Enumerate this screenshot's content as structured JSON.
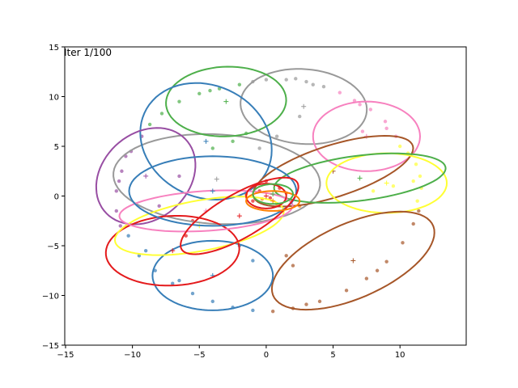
{
  "chart_data": {
    "type": "scatter",
    "annotation": "Iter 1/100",
    "xlim": [
      -15.06,
      14.95
    ],
    "ylim": [
      -15,
      15
    ],
    "xticks": [
      {
        "value": -15,
        "label": "−15"
      },
      {
        "value": -10,
        "label": "−10"
      },
      {
        "value": -5,
        "label": "−5"
      },
      0,
      5,
      10
    ],
    "yticks": [
      {
        "value": -15,
        "label": "−15"
      },
      {
        "value": -10,
        "label": "−10"
      },
      {
        "value": -5,
        "label": "−5"
      },
      0,
      5,
      10,
      15
    ],
    "groups": [
      {
        "color": "#377eb8",
        "x": [
          -10.3,
          -9.5,
          -8.3,
          -7,
          -5.5,
          -4,
          -2.5,
          -1,
          -6.5,
          -9,
          -2,
          -1
        ],
        "y": [
          -4,
          -6,
          -7.5,
          -8.8,
          -9.8,
          -10.6,
          -11.2,
          -11.5,
          -8.5,
          -5.5,
          -5,
          -6.5
        ]
      },
      {
        "color": "#a65628",
        "x": [
          0.5,
          2,
          4,
          6,
          7.5,
          9,
          10.2,
          11,
          11.4,
          3,
          8.3,
          2,
          1.5
        ],
        "y": [
          -11.6,
          -11.3,
          -10.6,
          -9.5,
          -8.3,
          -6.6,
          -4.7,
          -2.8,
          -1.5,
          -10.9,
          -7.5,
          -7,
          -6
        ]
      },
      {
        "color": "#ffff33",
        "x": [
          11.3,
          11.6,
          11.5,
          11.2,
          10.6,
          10,
          11,
          9.5,
          8
        ],
        "y": [
          -0.5,
          0.8,
          2,
          3.2,
          4.3,
          5,
          1.5,
          1,
          0.5
        ]
      },
      {
        "color": "#f781bf",
        "x": [
          9.7,
          8.9,
          7.8,
          6.6,
          5.5,
          9,
          7,
          7.2
        ],
        "y": [
          6,
          7.5,
          8.7,
          9.6,
          10.4,
          6.8,
          9.2,
          6.5
        ]
      },
      {
        "color": "#999999",
        "x": [
          4.3,
          3,
          1.5,
          0,
          -1,
          2.2,
          3.5,
          0.8,
          -0.5,
          2.5
        ],
        "y": [
          11,
          11.5,
          11.7,
          11.7,
          11.5,
          11.8,
          11.2,
          6,
          4.8,
          8
        ]
      },
      {
        "color": "#4daf4a",
        "x": [
          -2,
          -3.5,
          -5,
          -6.5,
          -7.8,
          -8.7,
          -4.2,
          -2.5,
          -4,
          -1.5
        ],
        "y": [
          11.2,
          10.8,
          10.3,
          9.5,
          8.3,
          7.2,
          10.6,
          5.5,
          4.8,
          6.3
        ]
      },
      {
        "color": "#984ea3",
        "x": [
          -9.3,
          -10.1,
          -10.8,
          -11.2,
          -11.2,
          -10.9,
          -10.5,
          -11,
          -6.5,
          -8
        ],
        "y": [
          6,
          4.5,
          2.5,
          0.5,
          -1.5,
          -3,
          4,
          1.5,
          2,
          -1
        ]
      },
      {
        "color": "#e41a1c",
        "x": [
          -0.5,
          0.3,
          1,
          -1,
          -5.5,
          -6,
          0
        ],
        "y": [
          0.5,
          -0.2,
          0.8,
          -0.5,
          -2.5,
          -4,
          1.5
        ]
      },
      {
        "color": "#ff7f00",
        "x": [
          -0.3,
          0.8,
          1.5,
          -1.5,
          2.5
        ],
        "y": [
          -0.3,
          -0.8,
          0.3,
          0.2,
          -1
        ]
      }
    ],
    "ellipses": [
      {
        "color": "#999999",
        "center": [
          -3.7,
          1.7
        ],
        "width": 15.5,
        "height": 9,
        "angle": -5
      },
      {
        "color": "#999999",
        "center": [
          2.8,
          9
        ],
        "width": 9.5,
        "height": 7.5,
        "angle": -10
      },
      {
        "color": "#4daf4a",
        "center": [
          -3,
          9.5
        ],
        "width": 9,
        "height": 7,
        "angle": 5
      },
      {
        "color": "#377eb8",
        "center": [
          -4.5,
          5.5
        ],
        "width": 9.5,
        "height": 12,
        "angle": 20
      },
      {
        "color": "#984ea3",
        "center": [
          -9,
          2
        ],
        "width": 7,
        "height": 10,
        "angle": -20
      },
      {
        "color": "#f781bf",
        "center": [
          7.5,
          6
        ],
        "width": 8,
        "height": 7,
        "angle": 0
      },
      {
        "color": "#a65628",
        "center": [
          5,
          2.5
        ],
        "width": 13,
        "height": 5,
        "angle": 25
      },
      {
        "color": "#ffff33",
        "center": [
          9,
          1.3
        ],
        "width": 9,
        "height": 6,
        "angle": 0
      },
      {
        "color": "#4daf4a",
        "center": [
          7,
          1.8
        ],
        "width": 13,
        "height": 4.5,
        "angle": 10
      },
      {
        "color": "#a65628",
        "center": [
          6.5,
          -6.5
        ],
        "width": 14,
        "height": 7,
        "angle": 35
      },
      {
        "color": "#377eb8",
        "center": [
          -4,
          -8
        ],
        "width": 9,
        "height": 7,
        "angle": 0
      },
      {
        "color": "#e41a1c",
        "center": [
          -7,
          -5.5
        ],
        "width": 10,
        "height": 7,
        "angle": 5
      },
      {
        "color": "#ffff33",
        "center": [
          -5,
          -3
        ],
        "width": 13,
        "height": 5,
        "angle": 15
      },
      {
        "color": "#f781bf",
        "center": [
          -4.5,
          -1.5
        ],
        "width": 13,
        "height": 4,
        "angle": 5
      },
      {
        "color": "#377eb8",
        "center": [
          -4,
          0.5
        ],
        "width": 12.5,
        "height": 7,
        "angle": 0
      },
      {
        "color": "#e41a1c",
        "center": [
          -2,
          -2
        ],
        "width": 11,
        "height": 4,
        "angle": 40
      },
      {
        "color": "#e41a1c",
        "center": [
          0,
          0
        ],
        "width": 3,
        "height": 2.5,
        "angle": 0
      },
      {
        "color": "#ff7f00",
        "center": [
          0.5,
          -0.5
        ],
        "width": 4,
        "height": 2,
        "angle": 0
      },
      {
        "color": "#4daf4a",
        "center": [
          0.5,
          0.2
        ],
        "width": 3,
        "height": 2,
        "angle": 0
      }
    ]
  }
}
